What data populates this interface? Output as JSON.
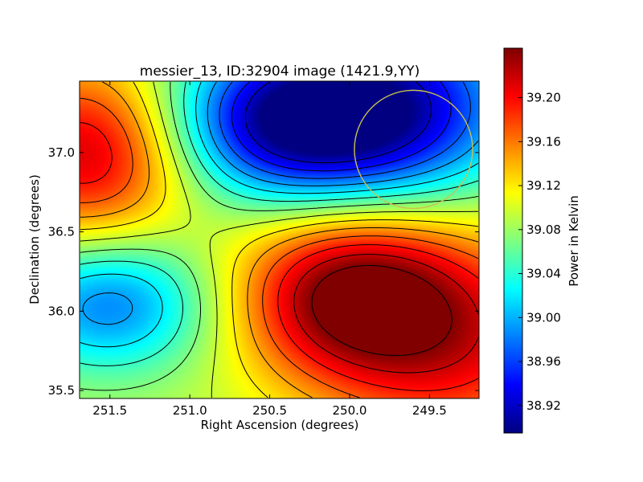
{
  "chart_data": {
    "type": "heatmap",
    "title": "messier_13, ID:32904 image (1421.9,YY)",
    "xlabel": "Right Ascension (degrees)",
    "ylabel": "Declination (degrees)",
    "colorbar_label": "Power in Kelvin",
    "xlim": [
      251.69,
      249.19
    ],
    "ylim": [
      35.45,
      37.45
    ],
    "x_ticks": [
      251.5,
      251.0,
      250.5,
      250.0,
      249.5
    ],
    "x_tick_labels": [
      "251.5",
      "251.0",
      "250.5",
      "250.0",
      "249.5"
    ],
    "y_ticks": [
      35.5,
      36.0,
      36.5,
      37.0
    ],
    "y_tick_labels": [
      "35.5",
      "36.0",
      "36.5",
      "37.0"
    ],
    "color_range": [
      38.895,
      39.245
    ],
    "colorbar_ticks": [
      38.92,
      38.96,
      39.0,
      39.04,
      39.08,
      39.12,
      39.16,
      39.2
    ],
    "colorbar_tick_labels": [
      "38.92",
      "38.96",
      "39.00",
      "39.04",
      "39.08",
      "39.12",
      "39.16",
      "39.20"
    ],
    "colormap": "jet",
    "contour_color": "#000000",
    "field_base": 39.09,
    "field_features": [
      {
        "ra": 251.62,
        "dec": 37.0,
        "amplitude": 0.13,
        "sigma_ra": 0.45,
        "sigma_dec": 0.4
      },
      {
        "ra": 250.0,
        "dec": 36.1,
        "amplitude": 0.15,
        "sigma_ra": 0.5,
        "sigma_dec": 0.38
      },
      {
        "ra": 249.3,
        "dec": 35.8,
        "amplitude": 0.1,
        "sigma_ra": 0.6,
        "sigma_dec": 0.5
      },
      {
        "ra": 250.35,
        "dec": 37.2,
        "amplitude": -0.19,
        "sigma_ra": 0.55,
        "sigma_dec": 0.35
      },
      {
        "ra": 249.6,
        "dec": 37.3,
        "amplitude": -0.12,
        "sigma_ra": 0.55,
        "sigma_dec": 0.45
      },
      {
        "ra": 251.5,
        "dec": 36.05,
        "amplitude": -0.11,
        "sigma_ra": 0.45,
        "sigma_dec": 0.3
      }
    ],
    "overlay_circle": {
      "ra": 249.6,
      "dec": 37.02,
      "radius_deg": 0.37,
      "color": "#c8c050"
    }
  }
}
